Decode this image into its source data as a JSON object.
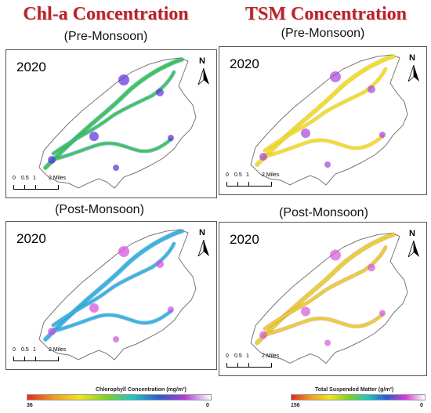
{
  "titles": {
    "chla": "Chl-a Concentration",
    "tsm": "TSM Concentration"
  },
  "seasons": {
    "pre": "(Pre-Monsoon)",
    "post": "(Post-Monsoon)"
  },
  "panels": {
    "chla_pre": {
      "year": "2020"
    },
    "tsm_pre": {
      "year": "2020"
    },
    "chla_post": {
      "year": "2020"
    },
    "tsm_post": {
      "year": "2020"
    }
  },
  "north_label": "N",
  "scale_bar": {
    "labels": [
      "0",
      "0.5",
      "1",
      "2 Miles"
    ]
  },
  "legends": {
    "chla": {
      "title": "Chlorophyll Concentration (mg/m³)",
      "min_label": "36",
      "max_label": "0",
      "colors": [
        "#e52a1d",
        "#f39a1f",
        "#f4e41c",
        "#7ed321",
        "#1fc6c1",
        "#2a5bd7",
        "#b23bd3",
        "#ffffff"
      ]
    },
    "tsm": {
      "title": "Total Suspended Matter (g/m³)",
      "min_label": "156",
      "max_label": "0",
      "colors": [
        "#e52a1d",
        "#f39a1f",
        "#f4e41c",
        "#7ed321",
        "#1fc6c1",
        "#2a5bd7",
        "#d63ad6",
        "#ffffff"
      ]
    }
  },
  "river_palettes": {
    "chla_pre": {
      "river": "#3ec84a",
      "river_edge": "#2f7fd8",
      "patch": "#5a2ed8"
    },
    "tsm_pre": {
      "river": "#e8e22a",
      "river_edge": "#f2a431",
      "patch": "#a743d6"
    },
    "chla_post": {
      "river": "#35b7d8",
      "river_edge": "#2b79d6",
      "patch": "#d14be0"
    },
    "tsm_post": {
      "river": "#e3d33a",
      "river_edge": "#e27e2c",
      "patch": "#d35ad6"
    }
  }
}
